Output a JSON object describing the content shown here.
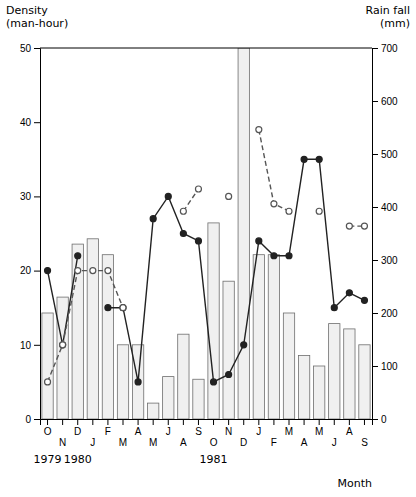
{
  "chart_data": {
    "type": "bar",
    "categories": [
      "O",
      "N",
      "D",
      "J",
      "F",
      "M",
      "A",
      "M",
      "J",
      "A",
      "S",
      "O",
      "N",
      "D",
      "J",
      "F",
      "M",
      "A",
      "M",
      "J",
      "A",
      "S"
    ],
    "series": [
      {
        "type": "bar",
        "axis": "y2",
        "color": "#f0f0f0",
        "values": [
          200,
          230,
          330,
          340,
          310,
          140,
          140,
          30,
          80,
          160,
          75,
          370,
          260,
          700,
          310,
          310,
          200,
          120,
          100,
          180,
          170,
          140
        ]
      },
      {
        "type": "line",
        "color": "#222222",
        "marker": "circle",
        "line_style": "solid",
        "values": [
          20,
          10,
          22,
          null,
          15,
          15,
          5,
          27,
          30,
          25,
          24,
          5,
          6,
          10,
          24,
          22,
          22,
          35,
          35,
          15,
          17,
          16
        ]
      },
      {
        "type": "line",
        "color": "#555555",
        "marker": "open-circle",
        "line_style": "dashed",
        "values": [
          5,
          10,
          20,
          20,
          20,
          15,
          null,
          null,
          null,
          28,
          31,
          null,
          30,
          null,
          39,
          29,
          28,
          null,
          28,
          null,
          26,
          26
        ]
      }
    ],
    "ylim": [
      0,
      50
    ],
    "yticks": [
      0,
      10,
      20,
      30,
      40,
      50
    ],
    "y2lim": [
      0,
      700
    ],
    "y2ticks": [
      0,
      100,
      200,
      300,
      400,
      500,
      600,
      700
    ],
    "ylabel": [
      "Density",
      "(man-hour)"
    ],
    "y2label": [
      "Rain fall",
      "(mm)"
    ],
    "xlabel": "Month",
    "annotations": [
      {
        "text": "1979",
        "x": 0
      },
      {
        "text": "1980",
        "x": 2
      },
      {
        "text": "1981",
        "x": 11
      }
    ],
    "grid": false
  }
}
